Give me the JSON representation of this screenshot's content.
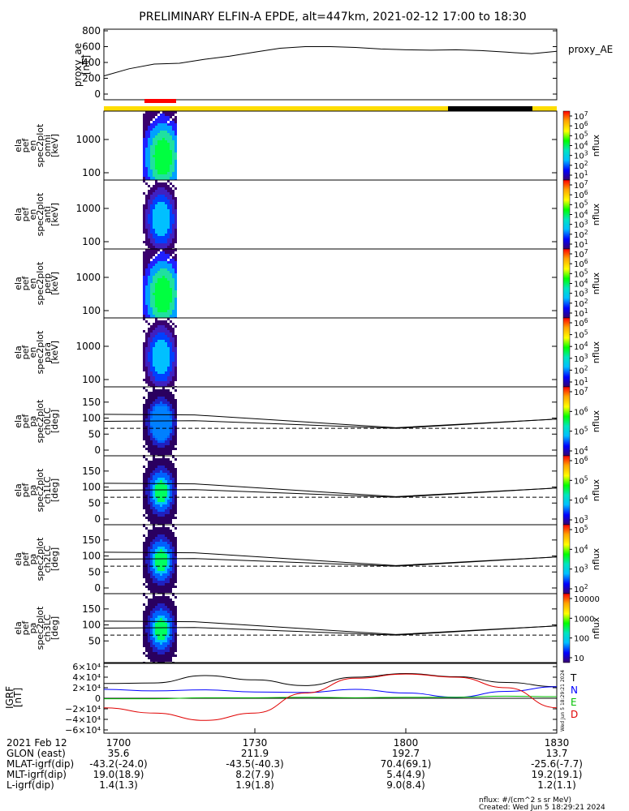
{
  "title": "PRELIMINARY ELFIN-A EPDE, alt=447km, 2021-02-12 17:00 to 18:30",
  "top_panel": {
    "ylabel_lines": [
      "proxy_ae",
      "[nT]"
    ],
    "yticks": [
      "800",
      "600",
      "400",
      "200",
      "0"
    ],
    "legend": "proxy_AE"
  },
  "spec_panels": [
    {
      "label_lines": [
        "ela",
        "pef",
        "en",
        "spec2plot",
        "omni",
        "[keV]"
      ],
      "yticks": [
        "1000",
        "100"
      ],
      "cb_ticks": [
        "10^7",
        "10^6",
        "10^5",
        "10^4",
        "10^3",
        "10^2",
        "10^1"
      ],
      "cb_label": "nflux"
    },
    {
      "label_lines": [
        "ela",
        "pef",
        "en",
        "spec2plot",
        "anti",
        "[keV]"
      ],
      "yticks": [
        "1000",
        "100"
      ],
      "cb_ticks": [
        "10^7",
        "10^6",
        "10^5",
        "10^4",
        "10^3",
        "10^2",
        "10^1"
      ],
      "cb_label": "nflux"
    },
    {
      "label_lines": [
        "ela",
        "pef",
        "en",
        "spec2plot",
        "perp",
        "[keV]"
      ],
      "yticks": [
        "1000",
        "100"
      ],
      "cb_ticks": [
        "10^7",
        "10^6",
        "10^5",
        "10^4",
        "10^3",
        "10^2",
        "10^1"
      ],
      "cb_label": "nflux"
    },
    {
      "label_lines": [
        "ela",
        "pef",
        "en",
        "spec2plot",
        "para",
        "[keV]"
      ],
      "yticks": [
        "1000",
        "100"
      ],
      "cb_ticks": [
        "10^6",
        "10^5",
        "10^4",
        "10^3",
        "10^2",
        "10^1"
      ],
      "cb_label": "nflux"
    },
    {
      "label_lines": [
        "ela",
        "pef",
        "pa",
        "spec2plot",
        "ch0LC",
        "[deg]"
      ],
      "yticks": [
        "150",
        "100",
        "50",
        "0"
      ],
      "cb_ticks": [
        "10^7",
        "10^6",
        "10^5",
        "10^4"
      ],
      "cb_label": "nflux"
    },
    {
      "label_lines": [
        "ela",
        "pef",
        "pa",
        "spec2plot",
        "ch1LC",
        "[deg]"
      ],
      "yticks": [
        "150",
        "100",
        "50",
        "0"
      ],
      "cb_ticks": [
        "10^6",
        "10^5",
        "10^4",
        "10^3"
      ],
      "cb_label": "nflux"
    },
    {
      "label_lines": [
        "ela",
        "pef",
        "pa",
        "spec2plot",
        "ch2LC",
        "[deg]"
      ],
      "yticks": [
        "150",
        "100",
        "50",
        "0"
      ],
      "cb_ticks": [
        "10^5",
        "10^4",
        "10^3",
        "10^2"
      ],
      "cb_label": "nflux"
    },
    {
      "label_lines": [
        "ela",
        "pef",
        "pa",
        "spec2plot",
        "ch3LC",
        "[deg]"
      ],
      "yticks": [
        "150",
        "100",
        "50"
      ],
      "cb_ticks": [
        "10000",
        "1000",
        "100",
        "10"
      ],
      "cb_label": "nflux"
    }
  ],
  "igrf_panel": {
    "ylabel_lines": [
      "IGRF",
      "[nT]"
    ],
    "yticks": [
      "6×10⁴",
      "4×10⁴",
      "2×10⁴",
      "0",
      "−2×10⁴",
      "−4×10⁴",
      "−6×10⁴"
    ],
    "legend": [
      {
        "label": "T",
        "color": "#000000"
      },
      {
        "label": "N",
        "color": "#0000ff"
      },
      {
        "label": "E",
        "color": "#00c000"
      },
      {
        "label": "D",
        "color": "#e00000"
      }
    ],
    "stamp": "Wed Jun 5 18:29:21 2024"
  },
  "bottom_table": {
    "rows": [
      {
        "label": "2021 Feb 12",
        "values": [
          "1700",
          "1730",
          "1800",
          "1830"
        ]
      },
      {
        "label": "GLON (east)",
        "values": [
          "35.6",
          "211.9",
          "192.7",
          "13.7"
        ]
      },
      {
        "label": "MLAT-igrf(dip)",
        "values": [
          "-43.2(-24.0)",
          "-43.5(-40.3)",
          "70.4(69.1)",
          "-25.6(-7.7)"
        ]
      },
      {
        "label": "MLT-igrf(dip)",
        "values": [
          "19.0(18.9)",
          "8.2(7.9)",
          "5.4(4.9)",
          "19.2(19.1)"
        ]
      },
      {
        "label": "L-igrf(dip)",
        "values": [
          "1.4(1.3)",
          "1.9(1.8)",
          "9.0(8.4)",
          "1.2(1.1)"
        ]
      }
    ]
  },
  "footer": {
    "units": "nflux: #/(cm^2 s sr MeV)",
    "created": "Created: Wed Jun  5 18:29:21 2024"
  },
  "colors": {
    "proxy_line": "#000000",
    "bar_yellow": "#ffdd00",
    "bar_black": "#000000",
    "bar_red": "#ff0000"
  },
  "chart_data": [
    {
      "type": "line",
      "name": "proxy_AE",
      "x": [
        1700,
        1705,
        1710,
        1715,
        1720,
        1725,
        1730,
        1735,
        1740,
        1745,
        1750,
        1755,
        1800,
        1805,
        1810,
        1815,
        1820,
        1825,
        1830
      ],
      "values": [
        230,
        320,
        380,
        390,
        440,
        480,
        530,
        580,
        600,
        600,
        590,
        570,
        560,
        555,
        560,
        550,
        530,
        510,
        540
      ],
      "ylim": [
        0,
        800
      ],
      "xlim": [
        1700,
        1830
      ]
    },
    {
      "type": "line",
      "name": "IGRF",
      "x": [
        1700,
        1710,
        1720,
        1730,
        1740,
        1750,
        1800,
        1810,
        1820,
        1830
      ],
      "ylim": [
        -60000,
        60000
      ],
      "series": [
        {
          "name": "T",
          "values": [
            28000,
            29000,
            43000,
            35000,
            24000,
            40000,
            47000,
            41000,
            30000,
            22000
          ]
        },
        {
          "name": "N",
          "values": [
            17000,
            14000,
            16000,
            12000,
            11000,
            17000,
            10000,
            2000,
            13000,
            22000
          ]
        },
        {
          "name": "E",
          "values": [
            -1000,
            -1000,
            1000,
            1000,
            2000,
            1000,
            2000,
            2000,
            4000,
            3000
          ]
        },
        {
          "name": "D",
          "values": [
            -18000,
            -28000,
            -42000,
            -28000,
            10000,
            38000,
            46000,
            40000,
            20000,
            -18000
          ]
        }
      ]
    }
  ]
}
